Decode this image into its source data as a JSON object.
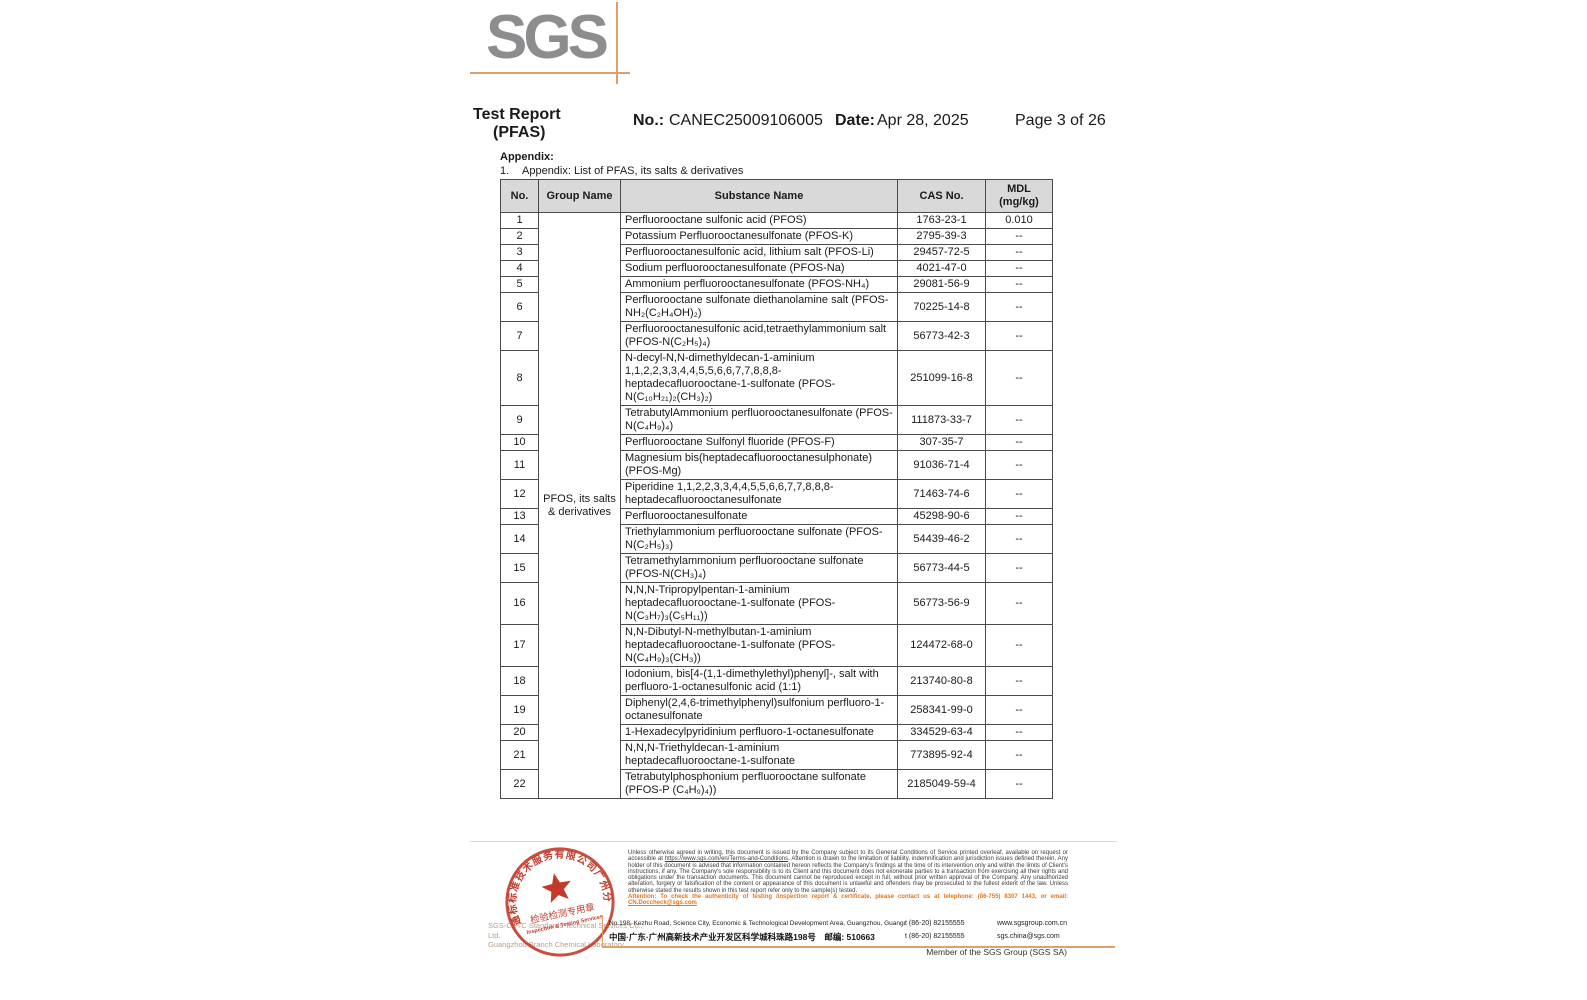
{
  "header": {
    "logo_text": "SGS",
    "title_line1": "Test Report",
    "title_line2": "(PFAS)",
    "no_label": "No.:",
    "no_value": "CANEC25009106005",
    "date_label": "Date:",
    "date_value": "Apr 28, 2025",
    "page_info": "Page 3 of 26"
  },
  "appendix": {
    "heading": "Appendix:",
    "item_no": "1.",
    "item_text": "Appendix: List of PFAS, its salts & derivatives"
  },
  "table": {
    "headers": {
      "no": "No.",
      "group": "Group Name",
      "substance": "Substance Name",
      "cas": "CAS No.",
      "mdl": "MDL\n(mg/kg)"
    },
    "group_name": "PFOS, its salts & derivatives",
    "rows": [
      {
        "no": "1",
        "substance": "Perfluorooctane sulfonic acid (PFOS)",
        "cas": "1763-23-1",
        "mdl": "0.010"
      },
      {
        "no": "2",
        "substance": "Potassium Perfluorooctanesulfonate (PFOS-K)",
        "cas": "2795-39-3",
        "mdl": "--"
      },
      {
        "no": "3",
        "substance": "Perfluorooctanesulfonic acid, lithium salt (PFOS-Li)",
        "cas": "29457-72-5",
        "mdl": "--"
      },
      {
        "no": "4",
        "substance": "Sodium perfluorooctanesulfonate (PFOS-Na)",
        "cas": "4021-47-0",
        "mdl": "--"
      },
      {
        "no": "5",
        "substance": "Ammonium perfluorooctanesulfonate (PFOS-NH₄)",
        "cas": "29081-56-9",
        "mdl": "--"
      },
      {
        "no": "6",
        "substance": "Perfluorooctane sulfonate diethanolamine salt (PFOS-NH₂(C₂H₄OH)₂)",
        "cas": "70225-14-8",
        "mdl": "--"
      },
      {
        "no": "7",
        "substance": "Perfluorooctanesulfonic acid,tetraethylammonium salt (PFOS-N(C₂H₅)₄)",
        "cas": "56773-42-3",
        "mdl": "--"
      },
      {
        "no": "8",
        "substance": "N-decyl-N,N-dimethyldecan-1-aminium 1,1,2,2,3,3,4,4,5,5,6,6,7,7,8,8,8-heptadecafluorooctane-1-sulfonate (PFOS-N(C₁₀H₂₁)₂(CH₃)₂)",
        "cas": "251099-16-8",
        "mdl": "--"
      },
      {
        "no": "9",
        "substance": "TetrabutylAmmonium perfluorooctanesulfonate (PFOS-N(C₄H₉)₄)",
        "cas": "111873-33-7",
        "mdl": "--"
      },
      {
        "no": "10",
        "substance": "Perfluorooctane Sulfonyl fluoride (PFOS-F)",
        "cas": "307-35-7",
        "mdl": "--"
      },
      {
        "no": "11",
        "substance": "Magnesium bis(heptadecafluorooctanesulphonate) (PFOS-Mg)",
        "cas": "91036-71-4",
        "mdl": "--"
      },
      {
        "no": "12",
        "substance": "Piperidine 1,1,2,2,3,3,4,4,5,5,6,6,7,7,8,8,8-heptadecafluorooctanesulfonate",
        "cas": "71463-74-6",
        "mdl": "--"
      },
      {
        "no": "13",
        "substance": "Perfluorooctanesulfonate",
        "cas": "45298-90-6",
        "mdl": "--"
      },
      {
        "no": "14",
        "substance": "Triethylammonium perfluorooctane sulfonate (PFOS-N(C₂H₅)₃)",
        "cas": "54439-46-2",
        "mdl": "--"
      },
      {
        "no": "15",
        "substance": "Tetramethylammonium perfluorooctane sulfonate (PFOS-N(CH₃)₄)",
        "cas": "56773-44-5",
        "mdl": "--"
      },
      {
        "no": "16",
        "substance": "N,N,N-Tripropylpentan-1-aminium heptadecafluorooctane-1-sulfonate (PFOS-N(C₃H₇)₃(C₅H₁₁))",
        "cas": "56773-56-9",
        "mdl": "--"
      },
      {
        "no": "17",
        "substance": "N,N-Dibutyl-N-methylbutan-1-aminium heptadecafluorooctane-1-sulfonate (PFOS-N(C₄H₉)₃(CH₃))",
        "cas": "124472-68-0",
        "mdl": "--"
      },
      {
        "no": "18",
        "substance": "Iodonium, bis[4-(1,1-dimethylethyl)phenyl]-, salt with perfluoro-1-octanesulfonic acid (1:1)",
        "cas": "213740-80-8",
        "mdl": "--"
      },
      {
        "no": "19",
        "substance": "Diphenyl(2,4,6-trimethylphenyl)sulfonium perfluoro-1-octanesulfonate",
        "cas": "258341-99-0",
        "mdl": "--"
      },
      {
        "no": "20",
        "substance": "1-Hexadecylpyridinium perfluoro-1-octanesulfonate",
        "cas": "334529-63-4",
        "mdl": "--"
      },
      {
        "no": "21",
        "substance": "N,N,N-Triethyldecan-1-aminium heptadecafluorooctane-1-sulfonate",
        "cas": "773895-92-4",
        "mdl": "--"
      },
      {
        "no": "22",
        "substance": "Tetrabutylphosphonium perfluorooctane sulfonate (PFOS-P (C₄H₉)₄))",
        "cas": "2185049-59-4",
        "mdl": "--"
      }
    ]
  },
  "footer": {
    "stamp": {
      "ring_text": "通标标准技术服务有限公司广州分公司",
      "seal_cn": "检验检测专用章",
      "seal_en": "Inspection & Testing Services",
      "color": "#c43a2a"
    },
    "company_line1": "SGS-CSTC Standards Technical Services Co., Ltd.",
    "company_line2": "Guangzhou Branch Chemical Laboratory.",
    "legal": {
      "part1": "Unless otherwise agreed in writing, this document is issued by the Company subject to its General Conditions of Service printed overleaf, available on request or accessible at ",
      "link": "https://www.sgs.com/en/Terms-and-Conditions",
      "part2": ". Attention is drawn to the limitation of liability, indemnification and jurisdiction issues defined therein. Any holder of this document is advised that information contained hereon reflects the Company's findings at the time of its intervention only and within the limits of Client's instructions, if any. The Company's sole responsibility is to its Client and this document does not exonerate parties to a transaction from exercising all their rights and obligations under the transaction documents. This document cannot be reproduced except in full, without prior written approval of the Company. Any unauthorized alteration, forgery or falsification of the content or appearance of this document is unlawful and offenders may be prosecuted to the fullest extent of the law. Unless otherwise stated the results shown in this test report refer only to the sample(s) tested."
    },
    "attention": {
      "part1": "Attention: To check the authenticity of testing /inspection report & certificate, please contact us at telephone: (86-755) 8307 1443, or email: ",
      "email": "CN.Doccheck@sgs.com"
    },
    "address_en": "No.198, Kezhu Road, Science City, Economic & Technological Development Area, Guangzhou, Guangdong, China 510663",
    "address_cn": "中国·广东·广州高新技术产业开发区科学城科珠路198号　邮编: 510663",
    "tel1": "t (86-20) 82155555",
    "tel2": "t (86-20) 82155555",
    "web1": "www.sgsgroup.com.cn",
    "web2": "sgs.china@sgs.com",
    "member_text": "Member of the SGS Group (SGS SA)",
    "accent_color": "#dca269"
  }
}
